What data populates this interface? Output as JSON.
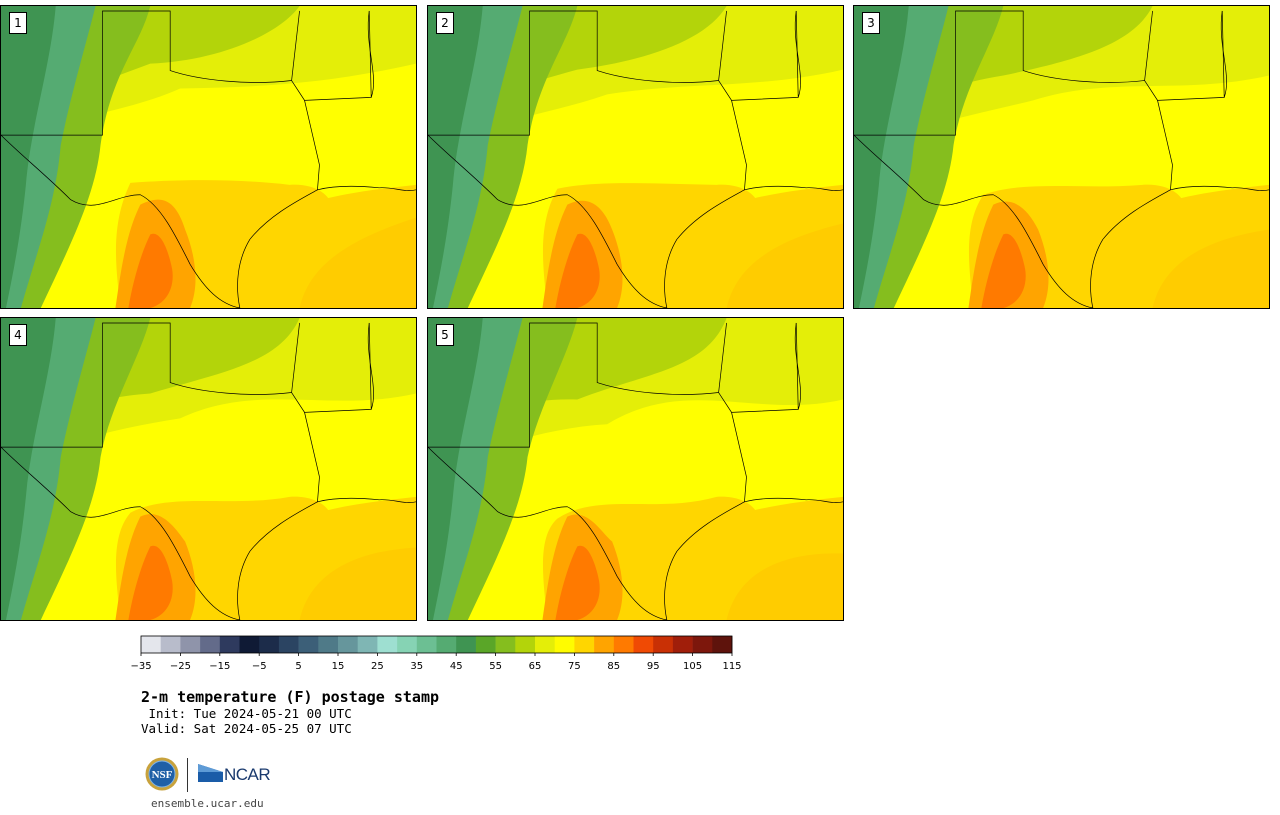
{
  "panels": [
    {
      "label": "1",
      "variant": 0
    },
    {
      "label": "2",
      "variant": 1
    },
    {
      "label": "3",
      "variant": 2
    },
    {
      "label": "4",
      "variant": 3
    },
    {
      "label": "5",
      "variant": 4
    }
  ],
  "colorbar": {
    "ticks": [
      "−35",
      "−25",
      "−15",
      "−5",
      "5",
      "15",
      "25",
      "35",
      "45",
      "55",
      "65",
      "75",
      "85",
      "95",
      "105",
      "115"
    ],
    "colors": [
      "#e4e6ec",
      "#b8bccb",
      "#8f94aa",
      "#636b8a",
      "#2e3a5e",
      "#0f1a35",
      "#1c2c4a",
      "#2b4462",
      "#3c5f78",
      "#4f7a88",
      "#66969c",
      "#7fb6b4",
      "#9edfd1",
      "#86d3b4",
      "#6cbf93",
      "#55ab72",
      "#3f9452",
      "#5aa628",
      "#85be1e",
      "#b3d40a",
      "#e4ee08",
      "#fffc00",
      "#ffd600",
      "#ffa400",
      "#ff7a00",
      "#f04a04",
      "#c93005",
      "#a01e0a",
      "#7d170c",
      "#5e130c"
    ]
  },
  "title": "2-m temperature (F) postage stamp",
  "init": " Init: Tue 2024-05-21 00 UTC",
  "valid": "Valid: Sat 2024-05-25 07 UTC",
  "footer": {
    "nsf_logo": "NSF",
    "ncar_logo": "NCAR",
    "website": "ensemble.ucar.edu"
  }
}
